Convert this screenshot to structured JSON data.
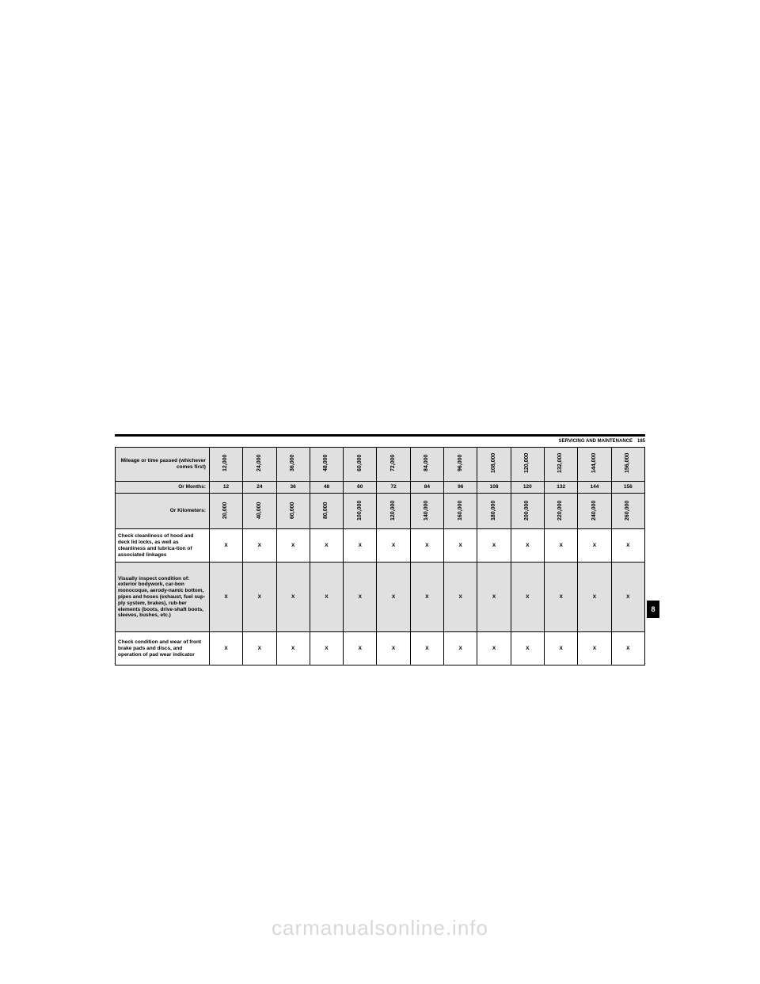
{
  "page_header": {
    "section": "SERVICING AND MAINTENANCE",
    "page_number": "185"
  },
  "section_tab": "8",
  "watermark": "carmanualsonline.info",
  "table": {
    "row_labels": {
      "mileage": "Mileage or time passed (whichever comes first)",
      "months": "Or Months:",
      "kilometers": "Or Kilometers:"
    },
    "mileage_values": [
      "12,000",
      "24,000",
      "36,000",
      "48,000",
      "60,000",
      "72,000",
      "84,000",
      "96,000",
      "108,000",
      "120,000",
      "132,000",
      "144,000",
      "156,000"
    ],
    "months_values": [
      "12",
      "24",
      "36",
      "48",
      "60",
      "72",
      "84",
      "96",
      "108",
      "120",
      "132",
      "144",
      "156"
    ],
    "km_values": [
      "20,000",
      "40,000",
      "60,000",
      "80,000",
      "100,000",
      "120,000",
      "140,000",
      "160,000",
      "180,000",
      "200,000",
      "220,000",
      "240,000",
      "260,000"
    ],
    "tasks": [
      {
        "label": "Check cleanliness of hood and deck lid locks, as well as cleanliness and lubrica-tion of associated linkages",
        "marks": [
          "X",
          "X",
          "X",
          "X",
          "X",
          "X",
          "X",
          "X",
          "X",
          "X",
          "X",
          "X",
          "X"
        ]
      },
      {
        "label": "Visually inspect condition of: exterior bodywork, car-bon monocoque, aerody-namic bottom, pipes and hoses (exhaust, fuel sup-ply system, brakes), rub-ber elements (boots, drive-shaft boots, sleeves, bushes, etc.)",
        "marks": [
          "X",
          "X",
          "X",
          "X",
          "X",
          "X",
          "X",
          "X",
          "X",
          "X",
          "X",
          "X",
          "X"
        ]
      },
      {
        "label": "Check condition and wear of front brake pads and discs, and operation of pad wear indicator",
        "marks": [
          "X",
          "X",
          "X",
          "X",
          "X",
          "X",
          "X",
          "X",
          "X",
          "X",
          "X",
          "X",
          "X"
        ]
      }
    ]
  },
  "styling": {
    "shaded_bg": "#e0e0e0",
    "border_color": "#000000",
    "text_color": "#000000",
    "watermark_color": "#d8d8d8"
  }
}
